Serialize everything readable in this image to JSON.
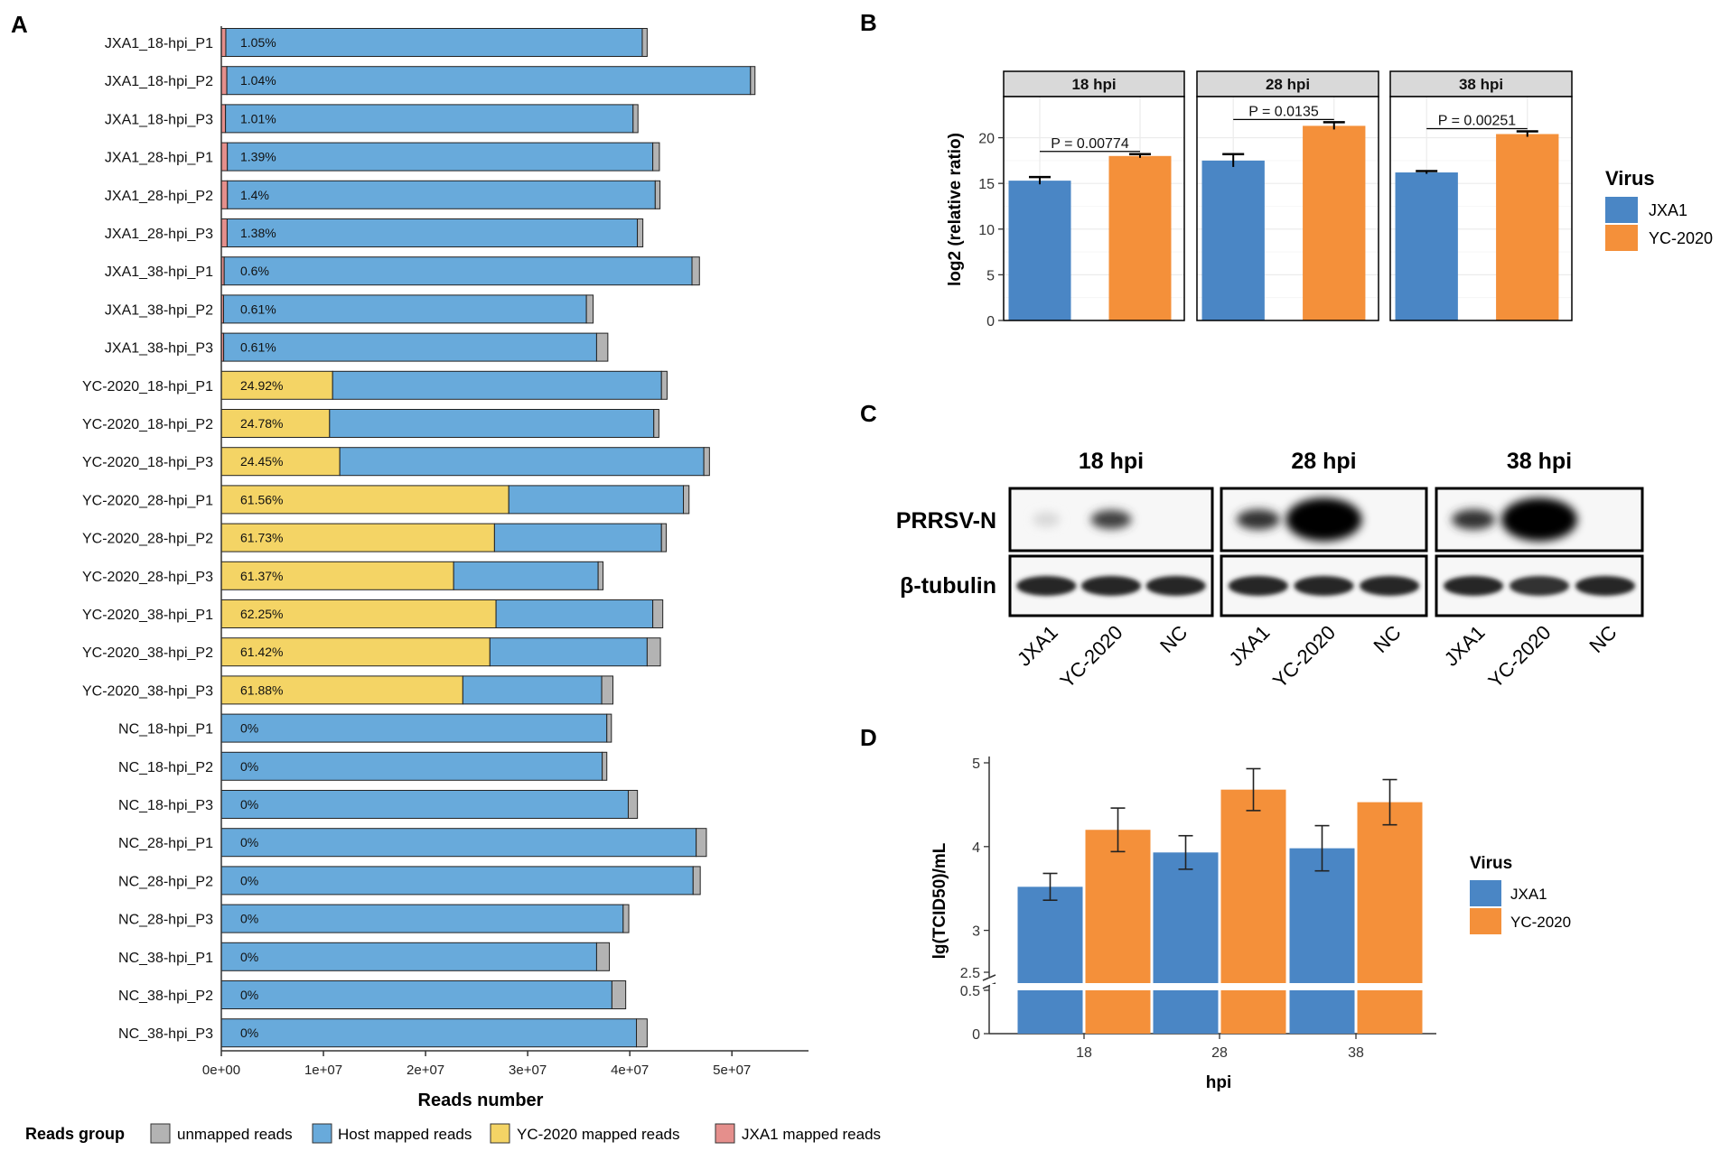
{
  "panel_labels": {
    "A": "A",
    "B": "B",
    "C": "C",
    "D": "D"
  },
  "colors": {
    "unmapped": "#b3b3b3",
    "host": "#68aadb",
    "yc": "#f4d465",
    "jxa1_reads": "#e58f8c",
    "jxa1": "#4a86c5",
    "yc2020": "#f4903a",
    "strip": "#d9d9d9",
    "grid": "#ebebeb"
  },
  "chart_data": [
    {
      "panel": "A",
      "type": "bar",
      "orientation": "horizontal",
      "stacked": true,
      "xlabel": "Reads number",
      "xlim": [
        0,
        57500000
      ],
      "xticks": [
        0,
        10000000,
        20000000,
        30000000,
        40000000,
        50000000
      ],
      "xtick_labels": [
        "0e+00",
        "1e+07",
        "2e+07",
        "3e+07",
        "4e+07",
        "5e+07"
      ],
      "legend": {
        "title": "Reads group",
        "position": "bottom",
        "entries": [
          "unmapped reads",
          "Host mapped reads",
          "YC-2020 mapped reads",
          "JXA1 mapped reads"
        ]
      },
      "samples": [
        {
          "name": "JXA1_18-hpi_P1",
          "label": "1.05%",
          "virus": "JXA1",
          "virus_reads": 440000,
          "host": 40780000,
          "unmapped": 480000
        },
        {
          "name": "JXA1_18-hpi_P2",
          "label": "1.04%",
          "virus": "JXA1",
          "virus_reads": 540000,
          "host": 51280000,
          "unmapped": 440000
        },
        {
          "name": "JXA1_18-hpi_P3",
          "label": "1.01%",
          "virus": "JXA1",
          "virus_reads": 410000,
          "host": 39910000,
          "unmapped": 480000
        },
        {
          "name": "JXA1_28-hpi_P1",
          "label": "1.39%",
          "virus": "JXA1",
          "virus_reads": 590000,
          "host": 41660000,
          "unmapped": 650000
        },
        {
          "name": "JXA1_28-hpi_P2",
          "label": "1.4%",
          "virus": "JXA1",
          "virus_reads": 600000,
          "host": 41890000,
          "unmapped": 470000
        },
        {
          "name": "JXA1_28-hpi_P3",
          "label": "1.38%",
          "virus": "JXA1",
          "virus_reads": 570000,
          "host": 40170000,
          "unmapped": 540000
        },
        {
          "name": "JXA1_38-hpi_P1",
          "label": "0.6%",
          "virus": "JXA1",
          "virus_reads": 280000,
          "host": 45810000,
          "unmapped": 730000
        },
        {
          "name": "JXA1_38-hpi_P2",
          "label": "0.61%",
          "virus": "JXA1",
          "virus_reads": 220000,
          "host": 35530000,
          "unmapped": 660000
        },
        {
          "name": "JXA1_38-hpi_P3",
          "label": "0.61%",
          "virus": "JXA1",
          "virus_reads": 230000,
          "host": 36520000,
          "unmapped": 1100000
        },
        {
          "name": "YC-2020_18-hpi_P1",
          "label": "24.92%",
          "virus": "YC-2020",
          "virus_reads": 10900000,
          "host": 32200000,
          "unmapped": 550000
        },
        {
          "name": "YC-2020_18-hpi_P2",
          "label": "24.78%",
          "virus": "YC-2020",
          "virus_reads": 10600000,
          "host": 31750000,
          "unmapped": 500000
        },
        {
          "name": "YC-2020_18-hpi_P3",
          "label": "24.45%",
          "virus": "YC-2020",
          "virus_reads": 11600000,
          "host": 35650000,
          "unmapped": 550000
        },
        {
          "name": "YC-2020_28-hpi_P1",
          "label": "61.56%",
          "virus": "YC-2020",
          "virus_reads": 28150000,
          "host": 17100000,
          "unmapped": 550000
        },
        {
          "name": "YC-2020_28-hpi_P2",
          "label": "61.73%",
          "virus": "YC-2020",
          "virus_reads": 26750000,
          "host": 16350000,
          "unmapped": 470000
        },
        {
          "name": "YC-2020_28-hpi_P3",
          "label": "61.37%",
          "virus": "YC-2020",
          "virus_reads": 22750000,
          "host": 14150000,
          "unmapped": 480000
        },
        {
          "name": "YC-2020_38-hpi_P1",
          "label": "62.25%",
          "virus": "YC-2020",
          "virus_reads": 26900000,
          "host": 15350000,
          "unmapped": 980000
        },
        {
          "name": "YC-2020_38-hpi_P2",
          "label": "61.42%",
          "virus": "YC-2020",
          "virus_reads": 26300000,
          "host": 15400000,
          "unmapped": 1300000
        },
        {
          "name": "YC-2020_38-hpi_P3",
          "label": "61.88%",
          "virus": "YC-2020",
          "virus_reads": 23650000,
          "host": 13600000,
          "unmapped": 1100000
        },
        {
          "name": "NC_18-hpi_P1",
          "label": "0%",
          "virus": "none",
          "virus_reads": 0,
          "host": 37750000,
          "unmapped": 450000
        },
        {
          "name": "NC_18-hpi_P2",
          "label": "0%",
          "virus": "none",
          "virus_reads": 0,
          "host": 37300000,
          "unmapped": 450000
        },
        {
          "name": "NC_18-hpi_P3",
          "label": "0%",
          "virus": "none",
          "virus_reads": 0,
          "host": 39850000,
          "unmapped": 900000
        },
        {
          "name": "NC_28-hpi_P1",
          "label": "0%",
          "virus": "none",
          "virus_reads": 0,
          "host": 46500000,
          "unmapped": 1000000
        },
        {
          "name": "NC_28-hpi_P2",
          "label": "0%",
          "virus": "none",
          "virus_reads": 0,
          "host": 46200000,
          "unmapped": 700000
        },
        {
          "name": "NC_28-hpi_P3",
          "label": "0%",
          "virus": "none",
          "virus_reads": 0,
          "host": 39350000,
          "unmapped": 550000
        },
        {
          "name": "NC_38-hpi_P1",
          "label": "0%",
          "virus": "none",
          "virus_reads": 0,
          "host": 36750000,
          "unmapped": 1250000
        },
        {
          "name": "NC_38-hpi_P2",
          "label": "0%",
          "virus": "none",
          "virus_reads": 0,
          "host": 38250000,
          "unmapped": 1350000
        },
        {
          "name": "NC_38-hpi_P3",
          "label": "0%",
          "virus": "none",
          "virus_reads": 0,
          "host": 40650000,
          "unmapped": 1050000
        }
      ]
    },
    {
      "panel": "B",
      "type": "bar",
      "ylabel": "log2 (relative ratio)",
      "ylim": [
        0,
        24.5
      ],
      "yticks": [
        0,
        5,
        10,
        15,
        20
      ],
      "grid": true,
      "legend": {
        "title": "Virus",
        "position": "right",
        "entries": [
          "JXA1",
          "YC-2020"
        ]
      },
      "facets": [
        {
          "title": "18 hpi",
          "values": [
            15.3,
            18.0
          ],
          "errors": [
            0.4,
            0.2
          ],
          "pvalue": "P = 0.00774"
        },
        {
          "title": "28 hpi",
          "values": [
            17.5,
            21.3
          ],
          "errors": [
            0.7,
            0.4
          ],
          "pvalue": "P = 0.0135"
        },
        {
          "title": "38 hpi",
          "values": [
            16.2,
            20.4
          ],
          "errors": [
            0.15,
            0.3
          ],
          "pvalue": "P = 0.00251"
        }
      ]
    },
    {
      "panel": "D",
      "type": "bar",
      "xlabel": "hpi",
      "ylabel": "lg(TCID50)/mL",
      "categories": [
        "18",
        "28",
        "38"
      ],
      "axis_break": {
        "lower": [
          0,
          0.5
        ],
        "upper": [
          2.5,
          5
        ]
      },
      "ytick_labels": [
        "0",
        "0.5",
        "2.5",
        "3",
        "4",
        "5"
      ],
      "legend": {
        "title": "Virus",
        "position": "right",
        "entries": [
          "JXA1",
          "YC-2020"
        ]
      },
      "series": [
        {
          "name": "JXA1",
          "values": [
            3.52,
            3.93,
            3.98
          ],
          "errors": [
            0.16,
            0.2,
            0.27
          ]
        },
        {
          "name": "YC-2020",
          "values": [
            4.2,
            4.68,
            4.53
          ],
          "errors": [
            0.26,
            0.25,
            0.27
          ]
        }
      ]
    }
  ],
  "western_blot": {
    "panel": "C",
    "timepoints": [
      "18 hpi",
      "28 hpi",
      "38 hpi"
    ],
    "rows": [
      "PRRSV-N",
      "β-tubulin"
    ],
    "lanes": [
      "JXA1",
      "YC-2020",
      "NC"
    ],
    "band_intensity": {
      "PRRSV-N": [
        [
          0.15,
          0.75,
          0.0
        ],
        [
          0.8,
          1.0,
          0.0
        ],
        [
          0.8,
          1.0,
          0.0
        ]
      ],
      "β-tubulin": [
        [
          0.85,
          0.85,
          0.85
        ],
        [
          0.85,
          0.85,
          0.85
        ],
        [
          0.85,
          0.8,
          0.85
        ]
      ]
    }
  }
}
